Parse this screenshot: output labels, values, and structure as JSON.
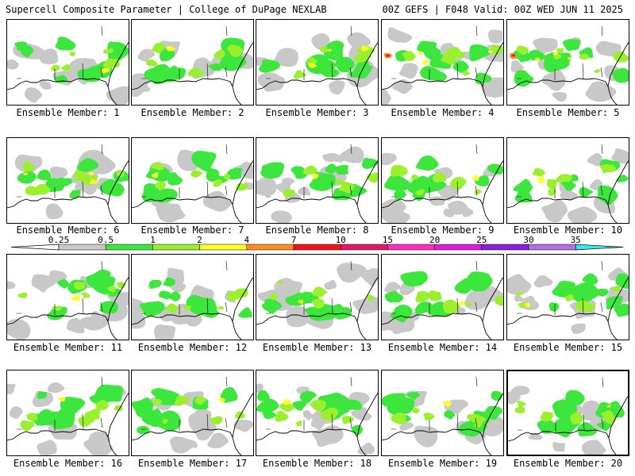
{
  "header": {
    "title": "Supercell Composite Parameter | College of DuPage NEXLAB",
    "run_info": "00Z GEFS | F048 Valid: 00Z WED JUN 11 2025"
  },
  "colorbar": {
    "ticks": [
      "0.25",
      "0.5",
      "1",
      "2",
      "4",
      "7",
      "10",
      "15",
      "20",
      "25",
      "30",
      "35"
    ],
    "colors": [
      "#c8c8c8",
      "#3ce63c",
      "#9bf02d",
      "#ffff28",
      "#ff8c1e",
      "#f01414",
      "#e6186e",
      "#ff2dbe",
      "#dc1edc",
      "#8c1edc",
      "#b46ee6",
      "#3ce6f0"
    ]
  },
  "panels": [
    {
      "label": "Ensemble Member: 1"
    },
    {
      "label": "Ensemble Member: 2"
    },
    {
      "label": "Ensemble Member: 3"
    },
    {
      "label": "Ensemble Member: 4"
    },
    {
      "label": "Ensemble Member: 5"
    },
    {
      "label": "Ensemble Member: 6"
    },
    {
      "label": "Ensemble Member: 7"
    },
    {
      "label": "Ensemble Member: 8"
    },
    {
      "label": "Ensemble Member: 9"
    },
    {
      "label": "Ensemble Member: 10"
    },
    {
      "label": "Ensemble Member: 11"
    },
    {
      "label": "Ensemble Member: 12"
    },
    {
      "label": "Ensemble Member: 13"
    },
    {
      "label": "Ensemble Member: 14"
    },
    {
      "label": "Ensemble Member: 15"
    },
    {
      "label": "Ensemble Member: 16"
    },
    {
      "label": "Ensemble Member: 17"
    },
    {
      "label": "Ensemble Member: 18"
    },
    {
      "label": "Ensemble Member: 19"
    },
    {
      "label": "Ensemble Member: 20"
    }
  ]
}
